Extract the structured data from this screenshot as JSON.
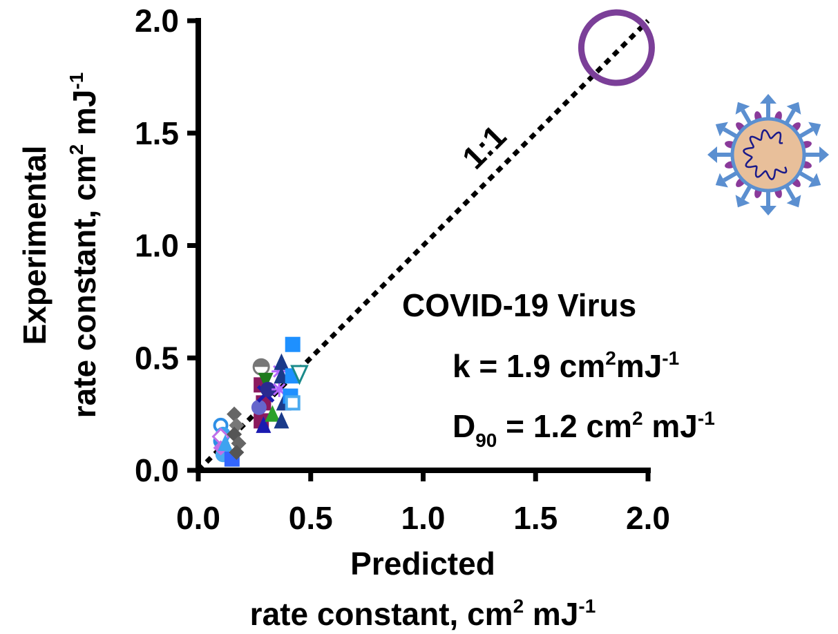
{
  "chart_data": {
    "type": "scatter",
    "title": "",
    "xlabel": [
      "Predicted",
      "rate constant, cm",
      "2",
      " mJ",
      "-1"
    ],
    "ylabel": [
      "Experimental",
      "rate constant, cm",
      "2",
      " mJ",
      "-1"
    ],
    "xlim": [
      0.0,
      2.0
    ],
    "ylim": [
      0.0,
      2.0
    ],
    "xticks": [
      "0.0",
      "0.5",
      "1.0",
      "1.5",
      "2.0"
    ],
    "yticks": [
      "0.0",
      "0.5",
      "1.0",
      "1.5",
      "2.0"
    ],
    "grid": false,
    "reference_line": {
      "label": "1:1",
      "from": [
        0.0,
        0.0
      ],
      "to": [
        2.0,
        2.0
      ],
      "style": "dotted"
    },
    "highlight": {
      "x": 1.86,
      "y": 1.88,
      "marker": "open-circle",
      "color": "#7b3f98"
    },
    "annotations": {
      "virus_name": "COVID-19 Virus",
      "k_prefix": "k = 1.9 cm",
      "k_sup1": "2",
      "k_mid": "mJ",
      "k_sup2": "-1",
      "d_prefix": "D",
      "d_sub": "90",
      "d_mid": " =  1.2 cm",
      "d_sup1": "2",
      "d_tail": " mJ",
      "d_sup2": "-1"
    },
    "points": [
      {
        "x": 0.1,
        "y": 0.2,
        "m": "circle-open",
        "c": "#2e8fe6"
      },
      {
        "x": 0.11,
        "y": 0.16,
        "m": "circle",
        "c": "#3ea3f0"
      },
      {
        "x": 0.1,
        "y": 0.13,
        "m": "circle",
        "c": "#2e8fe6"
      },
      {
        "x": 0.11,
        "y": 0.07,
        "m": "circle",
        "c": "#4aaaf0"
      },
      {
        "x": 0.1,
        "y": 0.15,
        "m": "diamond-open",
        "c": "#c070e8"
      },
      {
        "x": 0.1,
        "y": 0.1,
        "m": "diamond",
        "c": "#c070e8"
      },
      {
        "x": 0.12,
        "y": 0.12,
        "m": "triangle",
        "c": "#3ea3f0"
      },
      {
        "x": 0.15,
        "y": 0.05,
        "m": "square",
        "c": "#3366ff"
      },
      {
        "x": 0.16,
        "y": 0.25,
        "m": "diamond",
        "c": "#666666"
      },
      {
        "x": 0.17,
        "y": 0.2,
        "m": "diamond",
        "c": "#777777"
      },
      {
        "x": 0.16,
        "y": 0.16,
        "m": "diamond",
        "c": "#555555"
      },
      {
        "x": 0.18,
        "y": 0.12,
        "m": "diamond",
        "c": "#666666"
      },
      {
        "x": 0.17,
        "y": 0.08,
        "m": "diamond",
        "c": "#555555"
      },
      {
        "x": 0.28,
        "y": 0.46,
        "m": "circle-half",
        "c": "#777777"
      },
      {
        "x": 0.28,
        "y": 0.38,
        "m": "square",
        "c": "#8b1a5e"
      },
      {
        "x": 0.29,
        "y": 0.3,
        "m": "square",
        "c": "#8b1a5e"
      },
      {
        "x": 0.28,
        "y": 0.22,
        "m": "square",
        "c": "#8b1a5e"
      },
      {
        "x": 0.3,
        "y": 0.4,
        "m": "triangle-down",
        "c": "#1e7a1e"
      },
      {
        "x": 0.27,
        "y": 0.28,
        "m": "circle",
        "c": "#6666cc"
      },
      {
        "x": 0.3,
        "y": 0.34,
        "m": "x",
        "c": "#1a1ab0"
      },
      {
        "x": 0.29,
        "y": 0.2,
        "m": "triangle",
        "c": "#1a1ab0"
      },
      {
        "x": 0.31,
        "y": 0.36,
        "m": "circle",
        "c": "#2a2a90"
      },
      {
        "x": 0.33,
        "y": 0.25,
        "m": "triangle",
        "c": "#2aa02a"
      },
      {
        "x": 0.36,
        "y": 0.44,
        "m": "asterisk",
        "c": "#b366ff"
      },
      {
        "x": 0.36,
        "y": 0.36,
        "m": "asterisk",
        "c": "#b366ff"
      },
      {
        "x": 0.37,
        "y": 0.48,
        "m": "triangle",
        "c": "#1a3a8a"
      },
      {
        "x": 0.37,
        "y": 0.42,
        "m": "triangle",
        "c": "#1a3a8a"
      },
      {
        "x": 0.38,
        "y": 0.3,
        "m": "triangle",
        "c": "#1a3a8a"
      },
      {
        "x": 0.37,
        "y": 0.22,
        "m": "triangle",
        "c": "#1a3a8a"
      },
      {
        "x": 0.42,
        "y": 0.56,
        "m": "square",
        "c": "#1e90ff"
      },
      {
        "x": 0.42,
        "y": 0.42,
        "m": "square",
        "c": "#1e90ff"
      },
      {
        "x": 0.45,
        "y": 0.43,
        "m": "triangle-down-open",
        "c": "#1a8a8a"
      },
      {
        "x": 0.41,
        "y": 0.33,
        "m": "square",
        "c": "#1e90ff"
      },
      {
        "x": 0.42,
        "y": 0.3,
        "m": "square-open",
        "c": "#4aaaf0"
      }
    ]
  }
}
